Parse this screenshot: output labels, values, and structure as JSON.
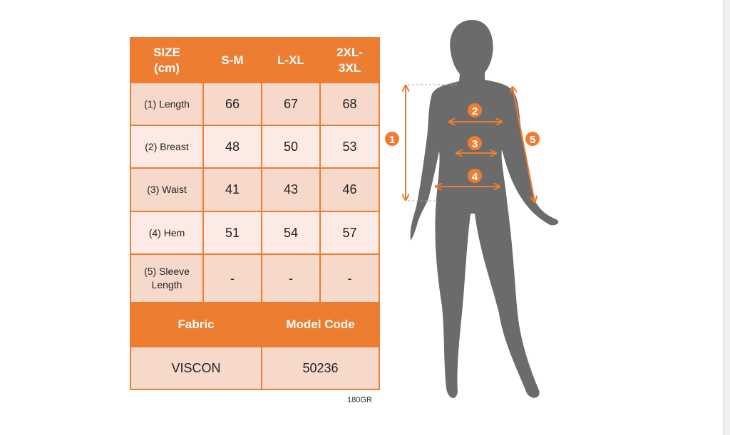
{
  "table": {
    "header": [
      "SIZE (cm)",
      "S-M",
      "L-XL",
      "2XL-3XL"
    ],
    "rows": [
      {
        "label": "(1) Length",
        "values": [
          "66",
          "67",
          "68"
        ]
      },
      {
        "label": "(2) Breast",
        "values": [
          "48",
          "50",
          "53"
        ]
      },
      {
        "label": "(3) Waist",
        "values": [
          "41",
          "43",
          "46"
        ]
      },
      {
        "label": "(4) Hem",
        "values": [
          "51",
          "54",
          "57"
        ]
      },
      {
        "label": "(5) Sleeve Length",
        "values": [
          "-",
          "-",
          "-"
        ]
      }
    ],
    "fabric_header": "Fabric",
    "model_code_header": "Model Code",
    "fabric_value": "VISCON",
    "model_code_value": "50236"
  },
  "weight_note": "180GR",
  "figure": {
    "markers": [
      "1",
      "2",
      "3",
      "4",
      "5"
    ]
  },
  "colors": {
    "accent": "#ED7D31",
    "silhouette": "#6B6B6B",
    "row_dark": "#F7D9CC",
    "row_light": "#FCEBE4"
  }
}
